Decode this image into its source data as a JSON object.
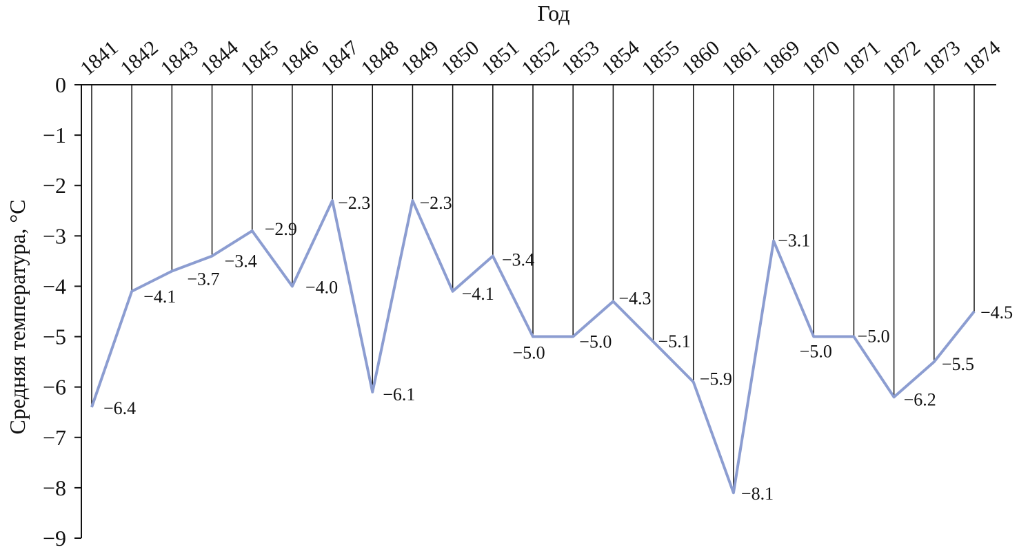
{
  "chart_data": {
    "type": "line",
    "xlabel": "Год",
    "ylabel": "Средняя температура, °C",
    "categories": [
      "1841",
      "1842",
      "1843",
      "1844",
      "1845",
      "1846",
      "1847",
      "1848",
      "1849",
      "1850",
      "1851",
      "1852",
      "1853",
      "1854",
      "1855",
      "1860",
      "1861",
      "1869",
      "1870",
      "1871",
      "1872",
      "1873",
      "1874"
    ],
    "series": [
      {
        "color": "#8c9dd1",
        "values": [
          -6.4,
          -4.1,
          -3.7,
          -3.4,
          -2.9,
          -4.0,
          -2.3,
          -6.1,
          -2.3,
          -4.1,
          -3.4,
          -5.0,
          -5.0,
          -4.3,
          -5.1,
          -5.9,
          -8.1,
          -3.1,
          -5.0,
          -5.0,
          -6.2,
          -5.5,
          -4.5
        ],
        "value_labels": [
          "−6.4",
          "−4.1",
          "−3.7",
          "−3.4",
          "−2.9",
          "−4.0",
          "−2.3",
          "−6.1",
          "−2.3",
          "−4.1",
          "−3.4",
          "−5.0",
          "−5.0",
          "−4.3",
          "−5.1",
          "−5.9",
          "−8.1",
          "−3.1",
          "−5.0",
          "−5.0",
          "−6.2",
          "−5.5",
          "−4.5"
        ]
      }
    ],
    "ylim": [
      0,
      -9
    ],
    "yticks": [
      0,
      {
        "value": -1,
        "label": "−1"
      },
      {
        "value": -2,
        "label": "−2"
      },
      {
        "value": -3,
        "label": "−3"
      },
      {
        "value": -4,
        "label": "−4"
      },
      {
        "value": -5,
        "label": "−5"
      },
      {
        "value": -6,
        "label": "−6"
      },
      {
        "value": -7,
        "label": "−7"
      },
      {
        "value": -8,
        "label": "−8"
      },
      {
        "value": -9,
        "label": "−9"
      }
    ],
    "drop_lines": true
  }
}
